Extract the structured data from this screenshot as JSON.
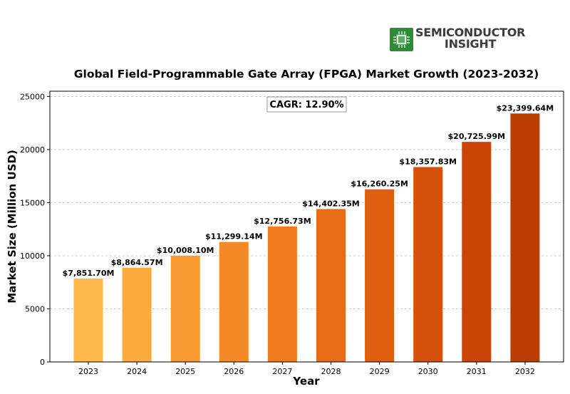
{
  "logo": {
    "line1": "SEMICONDUCTOR",
    "line2": "INSIGHT",
    "icon": "chip-icon",
    "icon_color": "#2e8b3a"
  },
  "chart_data": {
    "type": "bar",
    "title": "Global Field-Programmable Gate Array (FPGA) Market Growth (2023-2032)",
    "xlabel": "Year",
    "ylabel": "Market Size (Million USD)",
    "categories": [
      "2023",
      "2024",
      "2025",
      "2026",
      "2027",
      "2028",
      "2029",
      "2030",
      "2031",
      "2032"
    ],
    "values": [
      7851.7,
      8864.57,
      10008.1,
      11299.14,
      12756.73,
      14402.35,
      16260.25,
      18357.83,
      20725.99,
      23399.64
    ],
    "bar_labels": [
      "$7,851.70M",
      "$8,864.57M",
      "$10,008.10M",
      "$11,299.14M",
      "$12,756.73M",
      "$14,402.35M",
      "$16,260.25M",
      "$18,357.83M",
      "$20,725.99M",
      "$23,399.64M"
    ],
    "ylim": [
      0,
      25500
    ],
    "yticks": [
      0,
      5000,
      10000,
      15000,
      20000,
      25000
    ],
    "grid": true,
    "annotation": "CAGR: 12.90%",
    "colors": [
      "#fdb94a",
      "#fbaa3c",
      "#f89a2f",
      "#f48a25",
      "#ef7b1d",
      "#e86c16",
      "#df5e10",
      "#d5500b",
      "#c94406",
      "#bb3b03"
    ]
  }
}
